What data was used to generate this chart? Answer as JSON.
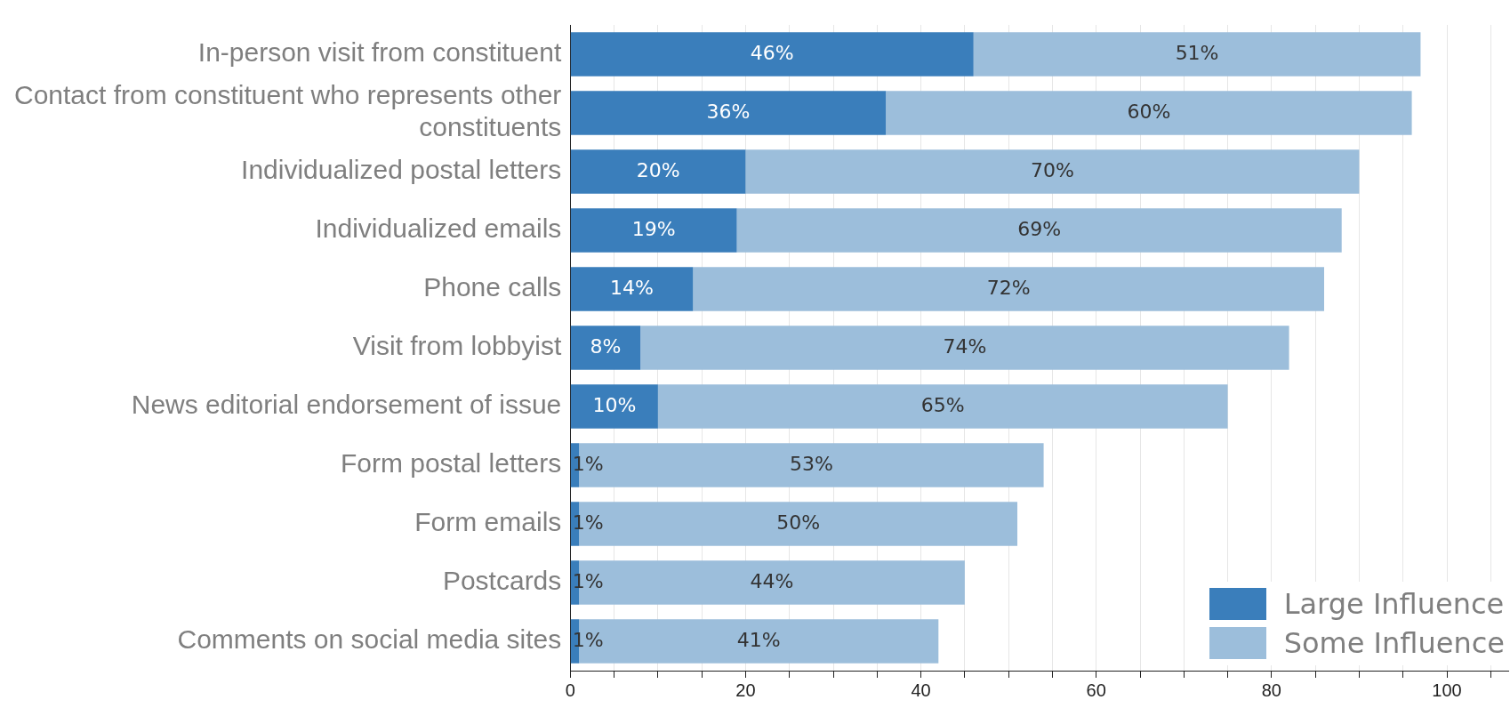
{
  "chart_data": {
    "type": "bar",
    "orientation": "horizontal",
    "stacked": true,
    "categories": [
      "In-person visit from constituent",
      "Contact from constituent who represents other constituents",
      "Individualized postal letters",
      "Individualized emails",
      "Phone calls",
      "Visit from lobbyist",
      "News editorial endorsement of issue",
      "Form postal letters",
      "Form emails",
      "Postcards",
      "Comments on social media sites"
    ],
    "series": [
      {
        "name": "Large Influence",
        "color": "#3a7ebb",
        "values": [
          46,
          36,
          20,
          19,
          14,
          8,
          10,
          1,
          1,
          1,
          1
        ],
        "value_labels": [
          "46%",
          "36%",
          "20%",
          "19%",
          "14%",
          "8%",
          "10%",
          "1%",
          "1%",
          "1%",
          "1%"
        ]
      },
      {
        "name": "Some Influence",
        "color": "#9cbedb",
        "values": [
          51,
          60,
          70,
          69,
          72,
          74,
          65,
          53,
          50,
          44,
          41
        ],
        "value_labels": [
          "51%",
          "60%",
          "70%",
          "69%",
          "72%",
          "74%",
          "65%",
          "53%",
          "50%",
          "44%",
          "41%"
        ]
      }
    ],
    "xlim": [
      0,
      107
    ],
    "xticks": [
      0,
      {
        "value": 5,
        "label": null
      },
      {
        "value": 10,
        "label": null
      },
      {
        "value": 15,
        "label": null
      },
      20,
      {
        "value": 25,
        "label": null
      },
      {
        "value": 30,
        "label": null
      },
      {
        "value": 35,
        "label": null
      },
      40,
      {
        "value": 45,
        "label": null
      },
      {
        "value": 50,
        "label": null
      },
      {
        "value": 55,
        "label": null
      },
      60,
      {
        "value": 65,
        "label": null
      },
      {
        "value": 70,
        "label": null
      },
      {
        "value": 75,
        "label": null
      },
      80,
      {
        "value": 85,
        "label": null
      },
      {
        "value": 90,
        "label": null
      },
      {
        "value": 95,
        "label": null
      },
      100,
      {
        "value": 105,
        "label": null
      }
    ],
    "grid": true,
    "legend": "bottom right"
  }
}
